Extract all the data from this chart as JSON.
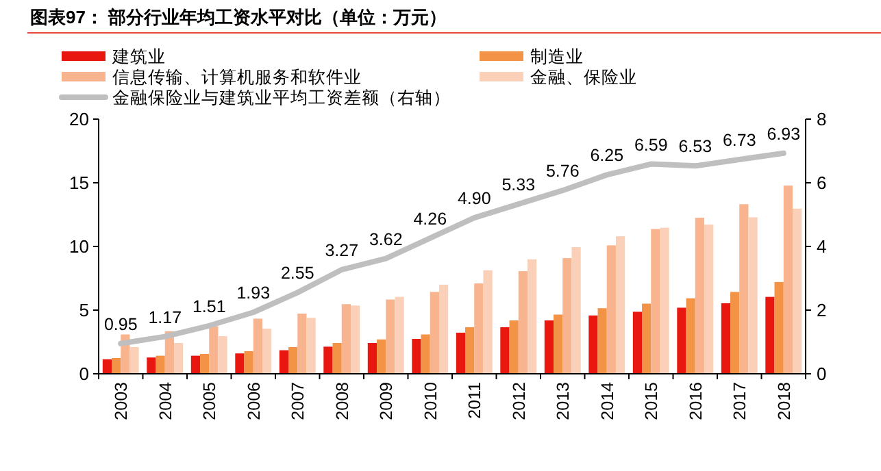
{
  "chart_data": {
    "type": "bar",
    "title": "图表97：  部分行业年均工资水平对比（单位：万元）",
    "categories": [
      "2003",
      "2004",
      "2005",
      "2006",
      "2007",
      "2008",
      "2009",
      "2010",
      "2011",
      "2012",
      "2013",
      "2014",
      "2015",
      "2016",
      "2017",
      "2018"
    ],
    "series": [
      {
        "name": "建筑业",
        "color": "#e8170f",
        "values": [
          1.14,
          1.28,
          1.42,
          1.6,
          1.85,
          2.13,
          2.42,
          2.74,
          3.23,
          3.66,
          4.19,
          4.58,
          4.87,
          5.19,
          5.54,
          6.04
        ]
      },
      {
        "name": "制造业",
        "color": "#f39346",
        "values": [
          1.24,
          1.42,
          1.56,
          1.78,
          2.1,
          2.42,
          2.7,
          3.09,
          3.66,
          4.19,
          4.65,
          5.15,
          5.51,
          5.93,
          6.43,
          7.21
        ]
      },
      {
        "name": "信息传输、计算机服务和软件业",
        "color": "#f7b48f",
        "values": [
          3.09,
          3.34,
          3.73,
          4.33,
          4.72,
          5.47,
          5.83,
          6.43,
          7.1,
          8.06,
          9.09,
          10.09,
          11.37,
          12.26,
          13.32,
          14.78
        ]
      },
      {
        "name": "金融、保险业",
        "color": "#fad0b8",
        "values": [
          2.1,
          2.42,
          2.95,
          3.55,
          4.4,
          5.36,
          6.04,
          7.0,
          8.13,
          8.99,
          9.95,
          10.8,
          11.47,
          11.72,
          12.29,
          12.97
        ]
      },
      {
        "name": "金融保险业与建筑业平均工资差额（右轴）",
        "type": "line",
        "axis": "y2",
        "color": "#bfbfbf",
        "values": [
          0.95,
          1.17,
          1.51,
          1.93,
          2.55,
          3.27,
          3.62,
          4.26,
          4.9,
          5.33,
          5.76,
          6.25,
          6.59,
          6.53,
          6.73,
          6.93
        ],
        "value_labels": [
          "0.95",
          "1.17",
          "1.51",
          "1.93",
          "2.55",
          "3.27",
          "3.62",
          "4.26",
          "4.90",
          "5.33",
          "5.76",
          "6.25",
          "6.59",
          "6.53",
          "6.73",
          "6.93"
        ]
      }
    ],
    "ylim": [
      0,
      20
    ],
    "yticks": [
      0,
      5,
      10,
      15,
      20
    ],
    "y2lim": [
      0,
      8
    ],
    "y2ticks": [
      0,
      2,
      4,
      6,
      8
    ],
    "legend": "top",
    "grid": false
  }
}
